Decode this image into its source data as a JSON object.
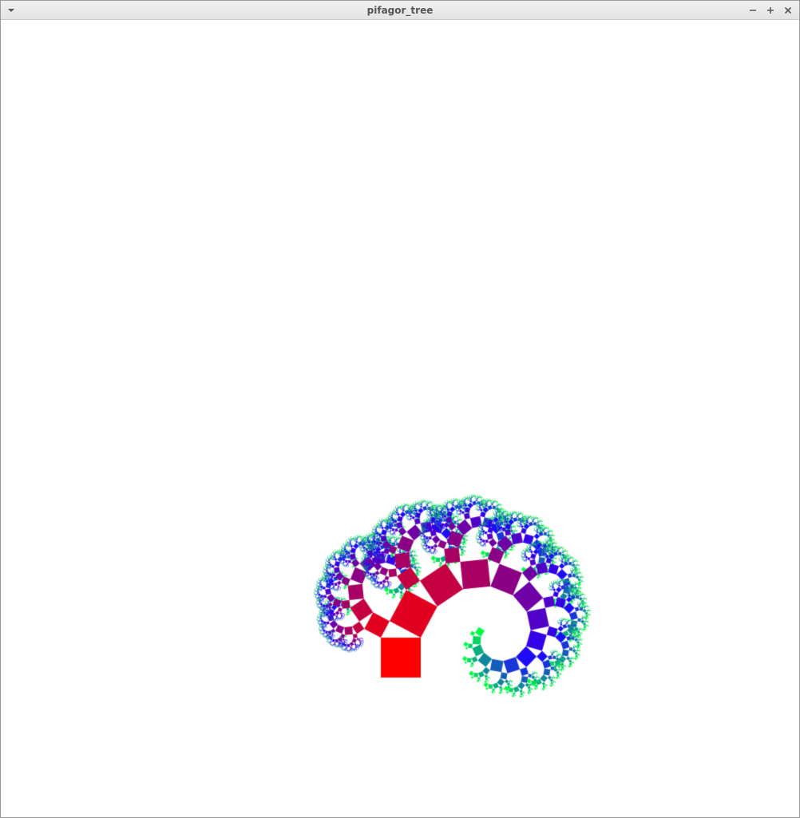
{
  "window": {
    "title": "pifagor_tree",
    "menu_icon": "chevron-down-icon",
    "minimize_icon": "minimize-icon",
    "maximize_icon": "maximize-icon",
    "close_icon": "close-icon"
  },
  "fractal": {
    "type": "pythagoras-tree",
    "depth": 14,
    "branch_angle_degrees": 62,
    "colors": {
      "trunk": "#ff0000",
      "mid": "#2000ff",
      "tips": "#00ff40"
    }
  }
}
